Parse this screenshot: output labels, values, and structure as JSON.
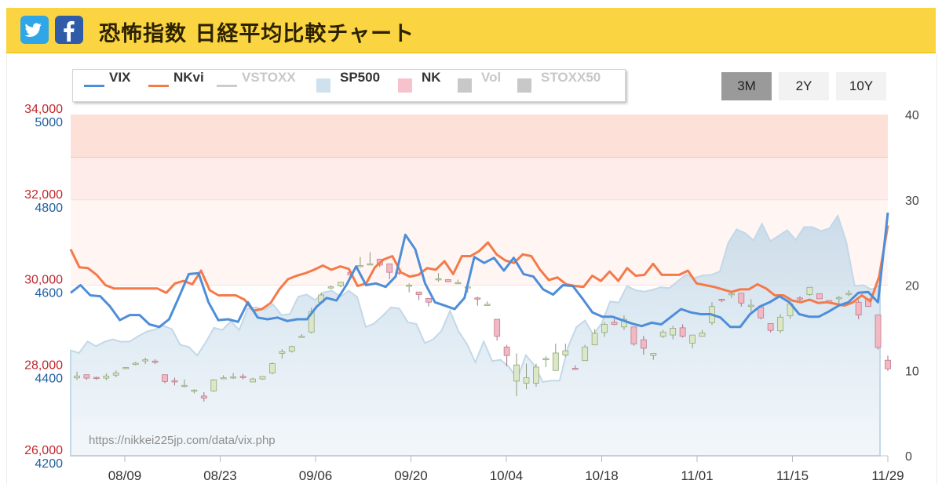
{
  "header": {
    "title": "恐怖指数 日経平均比較チャート",
    "twitter_icon": "twitter-bird-icon",
    "facebook_icon": "facebook-f-icon",
    "bg_color": "#fbd442"
  },
  "range_buttons": [
    {
      "label": "3M",
      "active": true
    },
    {
      "label": "2Y",
      "active": false
    },
    {
      "label": "10Y",
      "active": false
    }
  ],
  "chart_data": {
    "type": "line",
    "watermark": "https://nikkei225jp.com/data/vix.php",
    "legend": [
      {
        "name": "VIX",
        "kind": "line",
        "color": "#4e8ed8",
        "enabled": true
      },
      {
        "name": "NKvi",
        "kind": "line",
        "color": "#f47a4a",
        "enabled": true
      },
      {
        "name": "VSTOXX",
        "kind": "line",
        "color": "#c8c8c8",
        "enabled": false
      },
      {
        "name": "SP500",
        "kind": "area",
        "color": "#cfe1ee",
        "enabled": true
      },
      {
        "name": "NK",
        "kind": "box",
        "color": "#f6c3cc",
        "enabled": true
      },
      {
        "name": "Vol",
        "kind": "box",
        "color": "#c8c8c8",
        "enabled": false
      },
      {
        "name": "STOXX50",
        "kind": "box",
        "color": "#c8c8c8",
        "enabled": false
      }
    ],
    "x_ticks": [
      "08/09",
      "08/23",
      "09/06",
      "09/20",
      "10/04",
      "10/18",
      "11/01",
      "11/15",
      "11/29"
    ],
    "y_axis_nk": {
      "min": 26000,
      "max": 34000,
      "ticks": [
        "26,000",
        "28,000",
        "30,000",
        "32,000",
        "34,000"
      ],
      "color": "#c0282d"
    },
    "y_axis_sp500": {
      "min": 4200,
      "max": 5000,
      "ticks": [
        "4200",
        "4400",
        "4600",
        "4800",
        "5000"
      ],
      "color": "#2060a0"
    },
    "y_axis_vix": {
      "min": 0,
      "max": 40,
      "ticks": [
        "0",
        "10",
        "20",
        "30",
        "40"
      ],
      "color": "#444444"
    },
    "vix": [
      19.1,
      20.0,
      18.8,
      18.7,
      17.5,
      15.9,
      16.5,
      16.5,
      15.4,
      15.1,
      16.0,
      18.6,
      21.3,
      21.4,
      18.0,
      15.9,
      16.0,
      15.7,
      18.0,
      16.2,
      16.0,
      16.2,
      15.8,
      16.0,
      16.0,
      17.5,
      18.5,
      18.2,
      20.0,
      22.2,
      20.0,
      20.2,
      19.8,
      21.0,
      25.9,
      24.2,
      20.2,
      18.0,
      17.6,
      17.2,
      18.5,
      23.3,
      22.6,
      23.2,
      21.7,
      23.2,
      21.3,
      21.0,
      19.5,
      18.9,
      20.0,
      19.9,
      18.4,
      16.8,
      16.3,
      16.3,
      15.9,
      15.5,
      15.2,
      15.6,
      15.4,
      16.3,
      17.2,
      16.8,
      16.6,
      16.6,
      16.2,
      15.1,
      15.1,
      16.6,
      17.5,
      18.0,
      18.7,
      18.0,
      16.6,
      16.3,
      16.3,
      16.9,
      17.6,
      18.0,
      19.1,
      19.2,
      18.0,
      28.5
    ],
    "nkvi": [
      24.2,
      22.1,
      22.0,
      21.2,
      20.0,
      19.6,
      19.6,
      19.6,
      19.6,
      19.6,
      19.6,
      19.1,
      20.2,
      20.5,
      20.1,
      21.7,
      19.4,
      18.8,
      18.8,
      18.8,
      18.3,
      17.0,
      17.2,
      17.9,
      19.5,
      20.7,
      21.1,
      21.4,
      21.8,
      22.3,
      21.8,
      22.2,
      21.9,
      19.9,
      20.2,
      22.1,
      23.0,
      23.4,
      21.5,
      21.0,
      21.2,
      22.0,
      21.8,
      22.8,
      21.3,
      23.4,
      23.4,
      24.0,
      25.0,
      23.6,
      22.9,
      22.6,
      23.6,
      23.4,
      21.8,
      20.6,
      20.9,
      20.1,
      19.9,
      19.8,
      21.1,
      20.5,
      21.6,
      20.5,
      22.0,
      21.1,
      21.2,
      22.5,
      21.2,
      21.2,
      21.2,
      21.7,
      20.2,
      20.0,
      19.8,
      19.5,
      19.2,
      19.5,
      19.5,
      20.1,
      19.6,
      18.8,
      18.8,
      18.2,
      18.0,
      18.3,
      17.9,
      18.0,
      17.8,
      17.6,
      18.0,
      18.8,
      18.1,
      21.0,
      27.0
    ],
    "sp500": [
      4447,
      4441,
      4468,
      4457,
      4467,
      4473,
      4467,
      4468,
      4480,
      4491,
      4496,
      4505,
      4497,
      4460,
      4455,
      4435,
      4465,
      4500,
      4495,
      4515,
      4495,
      4545,
      4548,
      4542,
      4555,
      4530,
      4532,
      4573,
      4578,
      4565,
      4583,
      4587,
      4573,
      4587,
      4572,
      4502,
      4510,
      4528,
      4548,
      4545,
      4513,
      4509,
      4464,
      4473,
      4493,
      4540,
      4492,
      4462,
      4419,
      4468,
      4422,
      4425,
      4408,
      4381,
      4436,
      4412,
      4373,
      4376,
      4376,
      4455,
      4502,
      4517,
      4484,
      4511,
      4562,
      4559,
      4598,
      4588,
      4585,
      4589,
      4595,
      4593,
      4609,
      4625,
      4617,
      4623,
      4624,
      4632,
      4699,
      4731,
      4722,
      4705,
      4744,
      4703,
      4716,
      4729,
      4706,
      4736,
      4736,
      4727,
      4733,
      4763,
      4702,
      4598,
      4600,
      4590,
      4600
    ],
    "nk_candles": [
      [
        27825,
        27972,
        27780,
        27870
      ],
      [
        27900,
        27870,
        27780,
        27820
      ],
      [
        27837,
        27860,
        27780,
        27820
      ],
      [
        27820,
        27930,
        27770,
        27870
      ],
      [
        27890,
        28000,
        27840,
        27940
      ],
      [
        28050,
        28080,
        28040,
        28070
      ],
      [
        28140,
        28200,
        28120,
        28170
      ],
      [
        28230,
        28300,
        28150,
        28250
      ],
      [
        28220,
        28260,
        28150,
        28190
      ],
      [
        27900,
        27880,
        27700,
        27740
      ],
      [
        27760,
        27830,
        27650,
        27730
      ],
      [
        27650,
        27790,
        27600,
        27650
      ],
      [
        27520,
        27560,
        27460,
        27540
      ],
      [
        27400,
        27490,
        27270,
        27350
      ],
      [
        27520,
        27800,
        27500,
        27780
      ],
      [
        27830,
        27890,
        27800,
        27830
      ],
      [
        27850,
        27940,
        27800,
        27850
      ],
      [
        27860,
        27920,
        27790,
        27850
      ],
      [
        27730,
        27830,
        27720,
        27800
      ],
      [
        27800,
        27850,
        27780,
        27860
      ],
      [
        27940,
        28190,
        27910,
        28160
      ],
      [
        28400,
        28500,
        28280,
        28440
      ],
      [
        28450,
        28580,
        28420,
        28560
      ],
      [
        28780,
        28850,
        28770,
        28800
      ],
      [
        28900,
        29470,
        28870,
        29380
      ],
      [
        29600,
        29830,
        29560,
        29770
      ],
      [
        29940,
        29990,
        29900,
        29960
      ],
      [
        29980,
        30070,
        29950,
        30070
      ],
      [
        30300,
        30350,
        30180,
        30240
      ],
      [
        30440,
        30660,
        30420,
        30460
      ],
      [
        30500,
        30770,
        30470,
        30500
      ],
      [
        30610,
        30550,
        30420,
        30470
      ],
      [
        30500,
        30470,
        30140,
        30300
      ],
      [
        30300,
        30380,
        30240,
        30290
      ],
      [
        30000,
        30040,
        29830,
        30000
      ],
      [
        29840,
        29780,
        29650,
        29780
      ],
      [
        29690,
        29700,
        29500,
        29600
      ],
      [
        30130,
        30280,
        30080,
        30150
      ],
      [
        30130,
        30130,
        30070,
        30080
      ],
      [
        30060,
        30130,
        30040,
        30060
      ],
      [
        29960,
        29990,
        29820,
        29960
      ],
      [
        29700,
        29730,
        29520,
        29680
      ],
      [
        29550,
        29620,
        29520,
        29550
      ],
      [
        29200,
        29130,
        28700,
        28800
      ],
      [
        28550,
        28600,
        28100,
        28350
      ],
      [
        27750,
        28400,
        27400,
        28130
      ],
      [
        27700,
        28160,
        27560,
        27830
      ],
      [
        27700,
        28160,
        27620,
        28080
      ],
      [
        28250,
        28330,
        28080,
        28280
      ],
      [
        28000,
        28630,
        28200,
        28410
      ],
      [
        28360,
        28630,
        28320,
        28460
      ],
      [
        28050,
        28120,
        28030,
        28030
      ],
      [
        28230,
        28600,
        28260,
        28550
      ],
      [
        28600,
        28970,
        28590,
        28870
      ],
      [
        28890,
        29130,
        28790,
        29080
      ],
      [
        29130,
        29200,
        29060,
        29080
      ],
      [
        29020,
        29290,
        28950,
        29200
      ],
      [
        29020,
        28750,
        28580,
        28620
      ],
      [
        28720,
        28810,
        28370,
        28520
      ],
      [
        28350,
        28400,
        28250,
        28400
      ],
      [
        28800,
        28950,
        28760,
        28900
      ],
      [
        28830,
        29050,
        28730,
        28990
      ],
      [
        29000,
        29080,
        28770,
        28800
      ],
      [
        28640,
        28820,
        28520,
        28830
      ],
      [
        28800,
        28950,
        28800,
        28880
      ],
      [
        29120,
        29600,
        29070,
        29500
      ],
      [
        29670,
        29680,
        29600,
        29660
      ],
      [
        29800,
        29830,
        29700,
        29800
      ],
      [
        29810,
        29800,
        29500,
        29580
      ],
      [
        29500,
        29670,
        29350,
        29530
      ],
      [
        29480,
        29470,
        29200,
        29230
      ],
      [
        29100,
        29000,
        28890,
        28940
      ],
      [
        28930,
        29320,
        28880,
        29250
      ],
      [
        29280,
        29600,
        29210,
        29560
      ],
      [
        29700,
        29740,
        29600,
        29680
      ],
      [
        29780,
        29950,
        29750,
        29950
      ],
      [
        29800,
        29760,
        29740,
        29680
      ],
      [
        29640,
        29590,
        29580,
        29580
      ],
      [
        29680,
        29750,
        29560,
        29710
      ],
      [
        29800,
        29880,
        29740,
        29810
      ],
      [
        29600,
        29650,
        29200,
        29300
      ],
      [
        29680,
        29660,
        29490,
        29500
      ],
      [
        29300,
        29020,
        28490,
        28540
      ],
      [
        28240,
        28350,
        27990,
        28040
      ]
    ]
  }
}
